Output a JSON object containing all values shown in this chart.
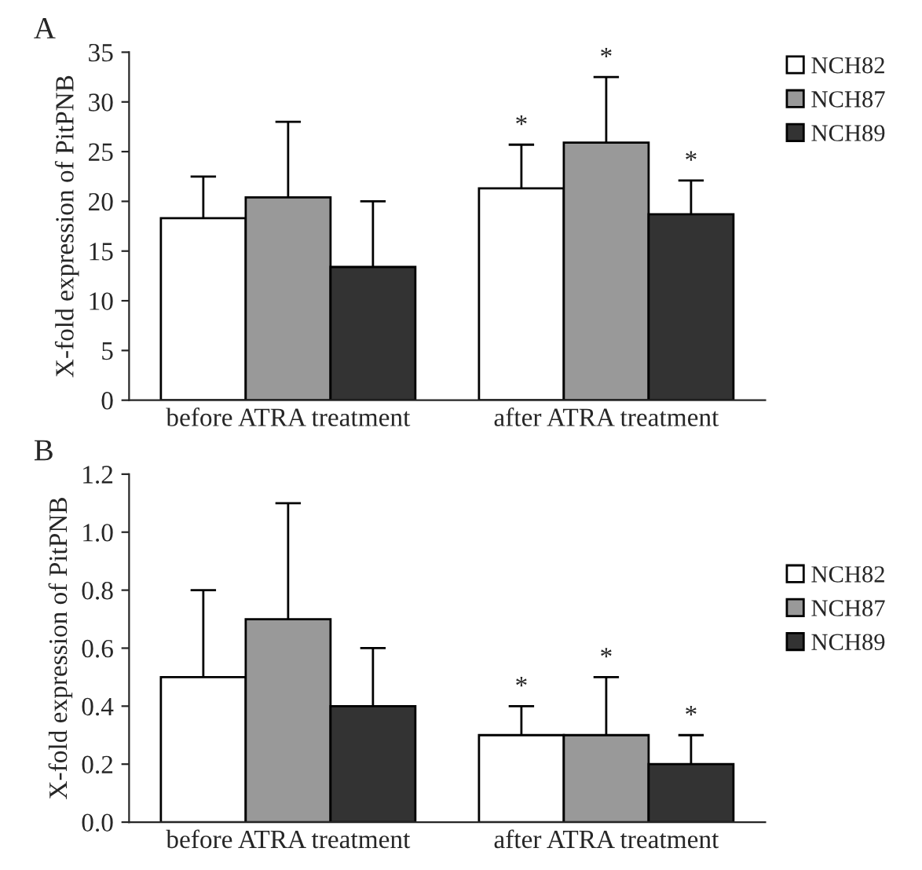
{
  "chart_data": [
    {
      "type": "bar",
      "title": "A",
      "ylabel": "X-fold expression of PitPNB",
      "categories": [
        "before ATRA treatment",
        "after ATRA treatment"
      ],
      "series": [
        {
          "name": "NCH82",
          "color": "#ffffff",
          "values": [
            18.3,
            21.3
          ],
          "errors": [
            [
              18.3,
              22.5
            ],
            [
              21.3,
              25.7
            ]
          ]
        },
        {
          "name": "NCH87",
          "color": "#999999",
          "values": [
            20.4,
            25.9
          ],
          "errors": [
            [
              20.4,
              28.0
            ],
            [
              25.9,
              32.5
            ]
          ]
        },
        {
          "name": "NCH89",
          "color": "#333333",
          "values": [
            13.4,
            18.7
          ],
          "errors": [
            [
              13.4,
              20.0
            ],
            [
              18.7,
              22.1
            ]
          ]
        }
      ],
      "ylim": [
        0,
        35
      ],
      "yticks": [
        0,
        5,
        10,
        15,
        20,
        25,
        30,
        35
      ],
      "legend": "top right",
      "annotations": [
        "*",
        "*",
        "*"
      ]
    },
    {
      "type": "bar",
      "title": "B",
      "ylabel": "X-fold expression of PitPNB",
      "categories": [
        "before ATRA treatment",
        "after ATRA treatment"
      ],
      "series": [
        {
          "name": "NCH82",
          "color": "#ffffff",
          "values": [
            0.5,
            0.3
          ],
          "errors": [
            [
              0.5,
              0.8
            ],
            [
              0.3,
              0.4
            ]
          ]
        },
        {
          "name": "NCH87",
          "color": "#999999",
          "values": [
            0.7,
            0.3
          ],
          "errors": [
            [
              0.7,
              1.1
            ],
            [
              0.3,
              0.5
            ]
          ]
        },
        {
          "name": "NCH89",
          "color": "#333333",
          "values": [
            0.4,
            0.2
          ],
          "errors": [
            [
              0.4,
              0.6
            ],
            [
              0.2,
              0.3
            ]
          ]
        }
      ],
      "ylim": [
        0,
        1.2
      ],
      "yticks": [
        {
          "value": 0,
          "label": "0.0"
        },
        {
          "value": 0.2,
          "label": "0.2"
        },
        {
          "value": 0.4,
          "label": "0.4"
        },
        {
          "value": 0.6,
          "label": "0.6"
        },
        {
          "value": 0.8,
          "label": "0.8"
        },
        {
          "value": 1.0,
          "label": "1.0"
        },
        {
          "value": 1.2,
          "label": "1.2"
        }
      ],
      "legend": "right",
      "annotations": [
        "*",
        "*",
        "*"
      ]
    }
  ]
}
